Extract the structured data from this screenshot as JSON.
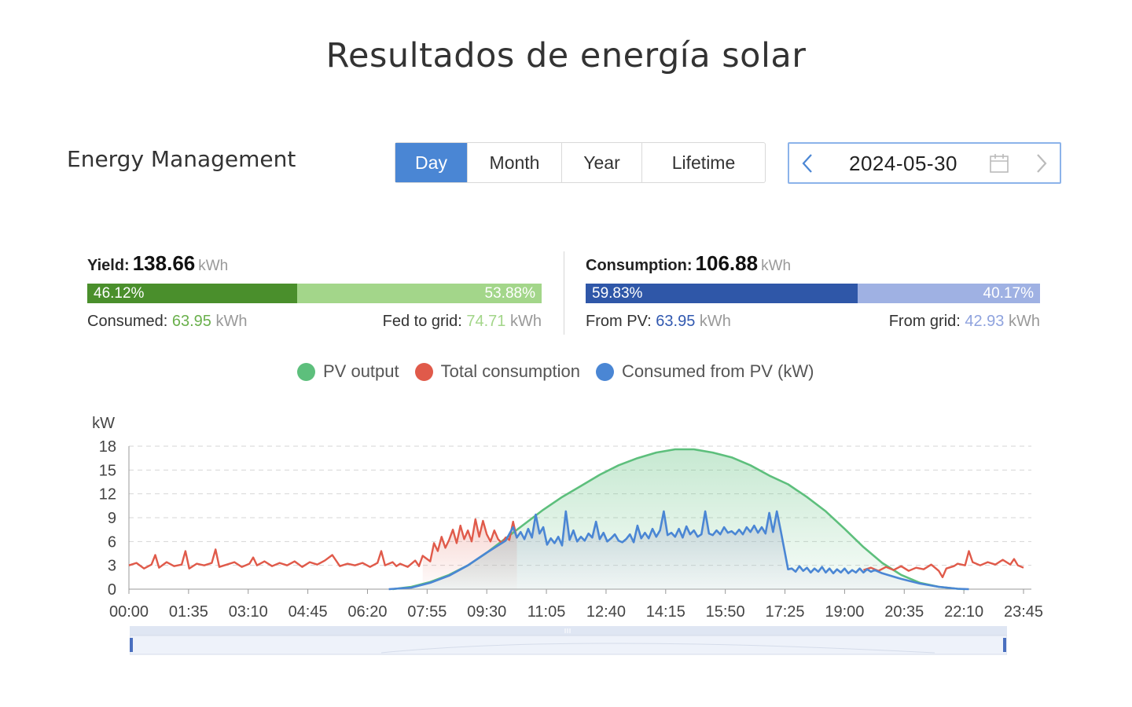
{
  "page": {
    "heading": "Resultados de energía solar"
  },
  "header": {
    "title": "Energy Management",
    "tabs": [
      {
        "label": "Day",
        "active": true
      },
      {
        "label": "Month",
        "active": false
      },
      {
        "label": "Year",
        "active": false
      },
      {
        "label": "Lifetime",
        "active": false
      }
    ],
    "date": "2024-05-30"
  },
  "yield": {
    "label": "Yield:",
    "value": "138.66",
    "unit": "kWh",
    "consumed_pct": "46.12%",
    "fed_pct": "53.88%",
    "consumed_fraction": 0.4612,
    "consumed_label": "Consumed:",
    "consumed_value": "63.95",
    "consumed_unit": "kWh",
    "fed_label": "Fed to grid:",
    "fed_value": "74.71",
    "fed_unit": "kWh"
  },
  "consumption": {
    "label": "Consumption:",
    "value": "106.88",
    "unit": "kWh",
    "pv_pct": "59.83%",
    "grid_pct": "40.17%",
    "pv_fraction": 0.5983,
    "from_pv_label": "From PV:",
    "from_pv_value": "63.95",
    "from_pv_unit": "kWh",
    "from_grid_label": "From grid:",
    "from_grid_value": "42.93",
    "from_grid_unit": "kWh"
  },
  "colors": {
    "tab_active": "#4a86d4",
    "yield_dark": "#4a8f2c",
    "yield_light": "#a3d68a",
    "yield_text": "#6ab04c",
    "cons_dark": "#2f57a8",
    "cons_light": "#9fb1e3",
    "cons_text_dark": "#3259b0",
    "cons_text_light": "#8fa3de",
    "pv": "#5dbf7c",
    "consumption": "#e05a4a",
    "from_pv": "#4a86d4"
  },
  "legend": [
    {
      "label": "PV output",
      "color": "#5dbf7c",
      "icon": "dot-icon"
    },
    {
      "label": "Total consumption",
      "color": "#e05a4a",
      "icon": "dot-icon"
    },
    {
      "label": "Consumed from PV (kW)",
      "color": "#4a86d4",
      "icon": "dot-icon"
    }
  ],
  "chart_data": {
    "type": "line",
    "ylabel": "kW",
    "ylim": [
      0,
      18
    ],
    "yticks": [
      0,
      3,
      6,
      9,
      12,
      15,
      18
    ],
    "xlim_hours": [
      0,
      23.75
    ],
    "xticks": [
      "00:00",
      "01:35",
      "03:10",
      "04:45",
      "06:20",
      "07:55",
      "09:30",
      "11:05",
      "12:40",
      "14:15",
      "15:50",
      "17:25",
      "19:00",
      "20:35",
      "22:10",
      "23:45"
    ],
    "grid": true,
    "series": [
      {
        "name": "PV output",
        "color": "#5dbf7c",
        "points": [
          [
            7.0,
            0
          ],
          [
            7.5,
            0.3
          ],
          [
            8.0,
            0.9
          ],
          [
            8.5,
            1.8
          ],
          [
            9.0,
            3.0
          ],
          [
            9.5,
            4.6
          ],
          [
            10.0,
            6.4
          ],
          [
            10.5,
            8.2
          ],
          [
            11.0,
            10.0
          ],
          [
            11.5,
            11.6
          ],
          [
            12.0,
            13.0
          ],
          [
            12.5,
            14.4
          ],
          [
            13.0,
            15.6
          ],
          [
            13.5,
            16.5
          ],
          [
            14.0,
            17.2
          ],
          [
            14.5,
            17.6
          ],
          [
            15.0,
            17.6
          ],
          [
            15.5,
            17.2
          ],
          [
            16.0,
            16.6
          ],
          [
            16.5,
            15.6
          ],
          [
            17.0,
            14.3
          ],
          [
            17.5,
            13.2
          ],
          [
            18.0,
            11.6
          ],
          [
            18.5,
            9.8
          ],
          [
            19.0,
            7.6
          ],
          [
            19.5,
            5.3
          ],
          [
            20.0,
            3.3
          ],
          [
            20.5,
            1.8
          ],
          [
            21.0,
            0.8
          ],
          [
            21.5,
            0.3
          ],
          [
            22.0,
            0.05
          ],
          [
            22.2,
            0
          ]
        ]
      },
      {
        "name": "Total consumption",
        "color": "#e05a4a",
        "points": [
          [
            0,
            3.0
          ],
          [
            0.2,
            3.3
          ],
          [
            0.4,
            2.6
          ],
          [
            0.6,
            3.1
          ],
          [
            0.7,
            4.3
          ],
          [
            0.8,
            2.7
          ],
          [
            1.0,
            3.4
          ],
          [
            1.2,
            2.9
          ],
          [
            1.4,
            3.1
          ],
          [
            1.5,
            4.8
          ],
          [
            1.6,
            2.6
          ],
          [
            1.8,
            3.2
          ],
          [
            2.0,
            3.0
          ],
          [
            2.2,
            3.3
          ],
          [
            2.3,
            5.0
          ],
          [
            2.4,
            2.8
          ],
          [
            2.6,
            3.1
          ],
          [
            2.8,
            3.4
          ],
          [
            3.0,
            2.8
          ],
          [
            3.2,
            3.2
          ],
          [
            3.3,
            4.0
          ],
          [
            3.4,
            3.0
          ],
          [
            3.6,
            3.5
          ],
          [
            3.8,
            2.9
          ],
          [
            4.0,
            3.3
          ],
          [
            4.2,
            3.0
          ],
          [
            4.4,
            3.5
          ],
          [
            4.6,
            2.8
          ],
          [
            4.8,
            3.4
          ],
          [
            5.0,
            3.1
          ],
          [
            5.2,
            3.6
          ],
          [
            5.4,
            4.3
          ],
          [
            5.6,
            2.9
          ],
          [
            5.8,
            3.2
          ],
          [
            6.0,
            3.0
          ],
          [
            6.2,
            3.3
          ],
          [
            6.4,
            2.8
          ],
          [
            6.6,
            3.3
          ],
          [
            6.7,
            4.8
          ],
          [
            6.8,
            3.0
          ],
          [
            7.0,
            3.4
          ],
          [
            7.1,
            2.9
          ],
          [
            7.2,
            3.2
          ],
          [
            7.4,
            2.8
          ],
          [
            7.6,
            3.6
          ],
          [
            7.7,
            2.9
          ],
          [
            7.8,
            4.2
          ],
          [
            8.0,
            3.5
          ],
          [
            8.1,
            5.8
          ],
          [
            8.2,
            4.8
          ],
          [
            8.3,
            6.6
          ],
          [
            8.4,
            5.2
          ],
          [
            8.5,
            6.2
          ],
          [
            8.6,
            7.5
          ],
          [
            8.7,
            5.8
          ],
          [
            8.8,
            8.0
          ],
          [
            8.9,
            6.3
          ],
          [
            9.0,
            7.4
          ],
          [
            9.1,
            6.0
          ],
          [
            9.2,
            8.8
          ],
          [
            9.3,
            6.6
          ],
          [
            9.4,
            8.6
          ],
          [
            9.5,
            6.9
          ],
          [
            9.6,
            6.0
          ],
          [
            9.7,
            7.4
          ],
          [
            9.8,
            6.3
          ],
          [
            9.9,
            5.8
          ],
          [
            10.0,
            6.5
          ],
          [
            10.1,
            6.2
          ],
          [
            10.2,
            8.5
          ],
          [
            10.3,
            6.4
          ]
        ]
      },
      {
        "name": "Total consumption",
        "color": "#e05a4a",
        "points": [
          [
            19.5,
            2.4
          ],
          [
            19.7,
            2.7
          ],
          [
            19.9,
            2.3
          ],
          [
            20.1,
            2.8
          ],
          [
            20.3,
            2.4
          ],
          [
            20.5,
            2.9
          ],
          [
            20.7,
            2.3
          ],
          [
            20.9,
            2.7
          ],
          [
            21.1,
            2.5
          ],
          [
            21.3,
            3.1
          ],
          [
            21.5,
            2.3
          ],
          [
            21.6,
            1.5
          ],
          [
            21.7,
            2.6
          ],
          [
            21.9,
            2.9
          ],
          [
            22.0,
            3.2
          ],
          [
            22.2,
            3.0
          ],
          [
            22.3,
            4.8
          ],
          [
            22.4,
            3.4
          ],
          [
            22.6,
            3.0
          ],
          [
            22.8,
            3.4
          ],
          [
            23.0,
            3.1
          ],
          [
            23.2,
            3.7
          ],
          [
            23.4,
            3.1
          ],
          [
            23.5,
            3.8
          ],
          [
            23.6,
            3.0
          ],
          [
            23.75,
            2.7
          ]
        ]
      },
      {
        "name": "Consumed from PV (kW)",
        "color": "#4a86d4",
        "points": [
          [
            6.9,
            0
          ],
          [
            7.5,
            0.2
          ],
          [
            8.0,
            0.8
          ],
          [
            8.5,
            1.7
          ],
          [
            9.0,
            3.0
          ],
          [
            9.5,
            4.6
          ],
          [
            10.0,
            6.1
          ],
          [
            10.2,
            7.8
          ],
          [
            10.3,
            6.5
          ],
          [
            10.4,
            7.2
          ],
          [
            10.5,
            6.3
          ],
          [
            10.6,
            7.6
          ],
          [
            10.7,
            6.5
          ],
          [
            10.8,
            9.4
          ],
          [
            10.9,
            7.0
          ],
          [
            11.0,
            7.8
          ],
          [
            11.1,
            5.6
          ],
          [
            11.2,
            6.4
          ],
          [
            11.3,
            5.8
          ],
          [
            11.4,
            6.6
          ],
          [
            11.5,
            5.5
          ],
          [
            11.6,
            9.8
          ],
          [
            11.7,
            6.2
          ],
          [
            11.8,
            7.4
          ],
          [
            11.9,
            6.0
          ],
          [
            12.0,
            6.6
          ],
          [
            12.1,
            6.1
          ],
          [
            12.2,
            7.0
          ],
          [
            12.3,
            6.5
          ],
          [
            12.4,
            8.5
          ],
          [
            12.5,
            6.3
          ],
          [
            12.6,
            7.1
          ],
          [
            12.7,
            6.0
          ],
          [
            12.8,
            6.4
          ],
          [
            12.9,
            6.9
          ],
          [
            13.0,
            6.1
          ],
          [
            13.1,
            5.9
          ],
          [
            13.2,
            6.3
          ],
          [
            13.3,
            6.9
          ],
          [
            13.4,
            5.9
          ],
          [
            13.5,
            8.0
          ],
          [
            13.6,
            6.4
          ],
          [
            13.7,
            7.1
          ],
          [
            13.8,
            6.4
          ],
          [
            13.9,
            7.6
          ],
          [
            14.0,
            6.6
          ],
          [
            14.1,
            7.4
          ],
          [
            14.2,
            9.8
          ],
          [
            14.3,
            6.8
          ],
          [
            14.4,
            7.1
          ],
          [
            14.5,
            6.6
          ],
          [
            14.6,
            7.6
          ],
          [
            14.7,
            6.5
          ],
          [
            14.8,
            7.9
          ],
          [
            14.9,
            6.9
          ],
          [
            15.0,
            7.4
          ],
          [
            15.1,
            6.6
          ],
          [
            15.2,
            6.9
          ],
          [
            15.3,
            9.8
          ],
          [
            15.4,
            7.0
          ],
          [
            15.5,
            6.8
          ],
          [
            15.6,
            7.4
          ],
          [
            15.7,
            6.9
          ],
          [
            15.8,
            7.8
          ],
          [
            15.9,
            7.1
          ],
          [
            16.0,
            7.3
          ],
          [
            16.1,
            6.9
          ],
          [
            16.2,
            7.5
          ],
          [
            16.3,
            6.9
          ],
          [
            16.4,
            7.8
          ],
          [
            16.5,
            7.2
          ],
          [
            16.6,
            8.0
          ],
          [
            16.7,
            7.1
          ],
          [
            16.8,
            7.8
          ],
          [
            16.9,
            7.0
          ],
          [
            17.0,
            9.6
          ],
          [
            17.1,
            7.2
          ],
          [
            17.2,
            9.8
          ],
          [
            17.3,
            7.5
          ],
          [
            17.4,
            5.0
          ],
          [
            17.5,
            2.5
          ],
          [
            17.6,
            2.6
          ],
          [
            17.7,
            2.2
          ],
          [
            17.8,
            2.9
          ],
          [
            17.9,
            2.3
          ],
          [
            18.0,
            2.7
          ],
          [
            18.1,
            2.1
          ],
          [
            18.2,
            2.6
          ],
          [
            18.3,
            2.2
          ],
          [
            18.4,
            2.8
          ],
          [
            18.5,
            2.1
          ],
          [
            18.6,
            2.6
          ],
          [
            18.7,
            2.0
          ],
          [
            18.8,
            2.5
          ],
          [
            18.9,
            2.1
          ],
          [
            19.0,
            2.6
          ],
          [
            19.1,
            2.0
          ],
          [
            19.2,
            2.4
          ],
          [
            19.3,
            2.1
          ],
          [
            19.4,
            2.6
          ],
          [
            19.5,
            2.1
          ],
          [
            19.6,
            2.5
          ],
          [
            19.7,
            2.2
          ],
          [
            19.8,
            2.4
          ],
          [
            20.0,
            2.0
          ],
          [
            20.5,
            1.3
          ],
          [
            21.0,
            0.7
          ],
          [
            21.5,
            0.3
          ],
          [
            22.0,
            0.05
          ],
          [
            22.3,
            0
          ]
        ]
      }
    ]
  }
}
